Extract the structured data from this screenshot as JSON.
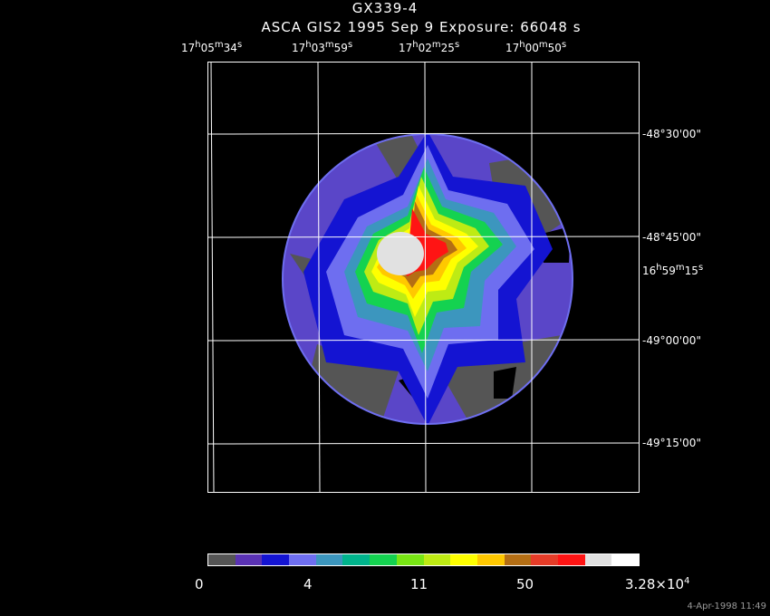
{
  "title": {
    "object": "GX339-4",
    "info": "ASCA GIS2   1995 Sep  9    Exposure: 66048 s"
  },
  "ra_labels": [
    {
      "h": "17",
      "m": "05",
      "s": "34"
    },
    {
      "h": "17",
      "m": "03",
      "s": "59"
    },
    {
      "h": "17",
      "m": "02",
      "s": "25"
    },
    {
      "h": "17",
      "m": "00",
      "s": "50"
    },
    {
      "h": "16",
      "m": "59",
      "s": "15"
    }
  ],
  "dec_labels": [
    "-48°30'00\"",
    "-48°45'00\"",
    "-49°00'00\"",
    "-49°15'00\""
  ],
  "colorbar": {
    "colors": [
      "#555555",
      "#5a32b4",
      "#1414d2",
      "#6e6ef0",
      "#3c96be",
      "#00b48c",
      "#14d250",
      "#78e614",
      "#beeb14",
      "#ffff00",
      "#ffc800",
      "#b46e14",
      "#e63c28",
      "#ff1414",
      "#e1e1e1",
      "#ffffff"
    ],
    "labels": [
      "0",
      "4",
      "11",
      "50"
    ],
    "max_label": "3.28×10",
    "max_exp": "4"
  },
  "footer": "4-Apr-1998 11:49"
}
